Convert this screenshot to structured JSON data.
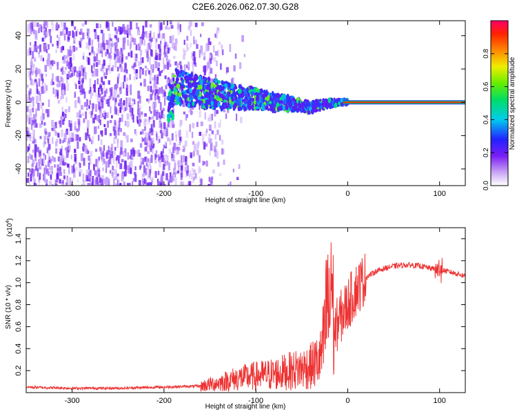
{
  "title": "C2E6.2026.062.07.30.G28",
  "chart_data": [
    {
      "type": "heatmap",
      "panel": "top",
      "xlabel": "Height of straight line (km)",
      "ylabel": "Frequency (Hz)",
      "xlim": [
        -350,
        128
      ],
      "ylim": [
        -50,
        49
      ],
      "xticks": [
        -300,
        -200,
        -100,
        0,
        100
      ],
      "xtick_labels": [
        "-300",
        "-200",
        "-100",
        "0",
        "100"
      ],
      "yticks": [
        -40,
        -20,
        0,
        20,
        40
      ],
      "ytick_labels": [
        "-40",
        "-20",
        "0",
        "20",
        "40"
      ],
      "description": "Noise floor at low heights, converging signal trace near 0 Hz from about -190 km to 0 km, then steady line at 0 Hz up to about 128 km",
      "trace": {
        "x": [
          -190,
          -170,
          -150,
          -120,
          -100,
          -80,
          -60,
          -40,
          -25,
          -10,
          0,
          50,
          100,
          128
        ],
        "freq": [
          10,
          7,
          5,
          3,
          2,
          0,
          -1,
          -3,
          -1,
          0,
          0,
          0,
          0,
          0
        ]
      },
      "colorbar": {
        "label": "Normalized spectral amplitude",
        "range": [
          0,
          1
        ],
        "ticks": [
          0.0,
          0.2,
          0.4,
          0.6,
          0.8
        ],
        "tick_labels": [
          "0.0",
          "0.2",
          "0.4",
          "0.6",
          "0.8"
        ]
      }
    },
    {
      "type": "line",
      "panel": "bottom",
      "xlabel": "Height of straight line (km)",
      "ylabel": "SNR (10 * v/v)",
      "scale_label": "(x10",
      "scale_exponent": "4",
      "xlim": [
        -350,
        128
      ],
      "ylim": [
        0,
        1.5
      ],
      "xticks": [
        -300,
        -200,
        -100,
        0,
        100
      ],
      "xtick_labels": [
        "-300",
        "-200",
        "-100",
        "0",
        "100"
      ],
      "yticks": [
        0.2,
        0.4,
        0.6,
        0.8,
        1.0,
        1.2,
        1.4
      ],
      "ytick_labels": [
        "0.2",
        "0.4",
        "0.6",
        "0.8",
        "1.0",
        "1.2",
        "1.4"
      ],
      "series": [
        {
          "name": "SNR",
          "color": "#ee3333",
          "x": [
            -350,
            -300,
            -250,
            -200,
            -160,
            -140,
            -120,
            -100,
            -80,
            -60,
            -40,
            -30,
            -25,
            -22,
            -20,
            -18,
            -15,
            -10,
            0,
            10,
            20,
            30,
            40,
            50,
            60,
            70,
            80,
            90,
            100,
            110,
            120,
            128
          ],
          "y": [
            0.05,
            0.04,
            0.04,
            0.05,
            0.06,
            0.09,
            0.13,
            0.15,
            0.17,
            0.2,
            0.24,
            0.3,
            0.5,
            0.9,
            0.6,
            1.2,
            0.55,
            0.65,
            0.8,
            0.95,
            1.05,
            1.1,
            1.13,
            1.15,
            1.16,
            1.16,
            1.15,
            1.13,
            1.12,
            1.1,
            1.08,
            1.06
          ]
        }
      ]
    }
  ]
}
